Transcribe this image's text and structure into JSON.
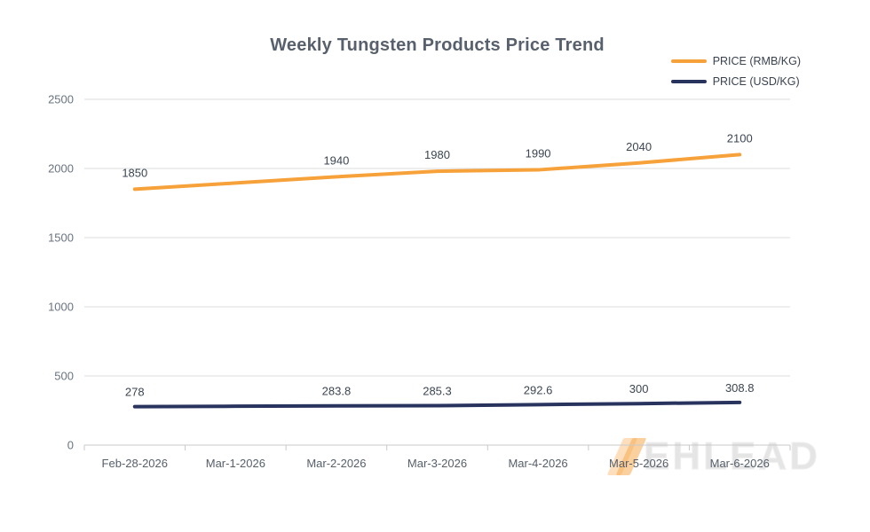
{
  "chart": {
    "watermark": {
      "text": "EHLEAD",
      "mark_color": "#f6a13c"
    }
  },
  "chart_data": {
    "type": "line",
    "title": "Weekly Tungsten Products Price Trend",
    "categories": [
      "Feb-28-2026",
      "Mar-1-2026",
      "Mar-2-2026",
      "Mar-3-2026",
      "Mar-4-2026",
      "Mar-5-2026",
      "Mar-6-2026"
    ],
    "series": [
      {
        "name": "PRICE (RMB/KG)",
        "color": "#f7a13a",
        "values": [
          1850,
          null,
          1940,
          1980,
          1990,
          2040,
          2100
        ],
        "labels": [
          "1850",
          "",
          "1940",
          "1980",
          "1990",
          "2040",
          "2100"
        ],
        "label_offset": 14
      },
      {
        "name": "PRICE (USD/KG)",
        "color": "#28335e",
        "values": [
          278,
          null,
          283.8,
          285.3,
          292.6,
          300,
          308.8
        ],
        "labels": [
          "278",
          "",
          "283.8",
          "285.3",
          "292.6",
          "300",
          "308.8"
        ],
        "label_offset": 12
      }
    ],
    "xlabel": "",
    "ylabel": "",
    "ylim": [
      0,
      2500
    ],
    "yticks": [
      0,
      500,
      1000,
      1500,
      2000,
      2500
    ],
    "grid": true,
    "legend_position": "top-right",
    "colors": {
      "gridline": "#dcdcdc",
      "axis": "#c9c9c9",
      "tick_label": "#6a7380",
      "x_label": "#575f6b",
      "data_label": "#3c4552",
      "title": "#57606c"
    }
  }
}
